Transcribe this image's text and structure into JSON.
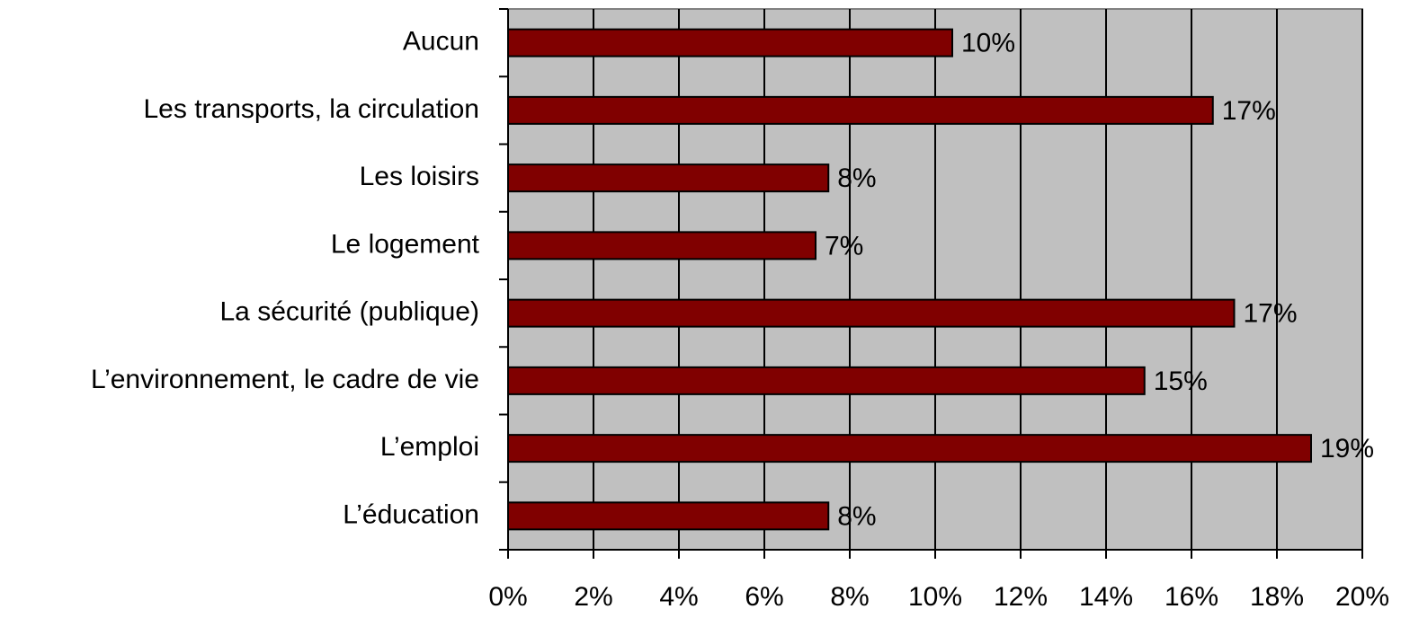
{
  "chart_data": {
    "type": "bar",
    "orientation": "horizontal",
    "categories": [
      "Aucun",
      "Les transports, la circulation",
      "Les loisirs",
      "Le logement",
      "La sécurité (publique)",
      "L’environnement, le cadre de vie",
      "L’emploi",
      "L’éducation"
    ],
    "values": [
      10.4,
      16.5,
      7.5,
      7.2,
      17.0,
      14.9,
      18.8,
      7.5
    ],
    "value_labels": [
      "10%",
      "17%",
      "8%",
      "7%",
      "17%",
      "15%",
      "19%",
      "8%"
    ],
    "color": "#800000",
    "xlim": [
      0,
      20
    ],
    "xticks": [
      {
        "value": 0,
        "label": "0%"
      },
      {
        "value": 2,
        "label": "2%"
      },
      {
        "value": 4,
        "label": "4%"
      },
      {
        "value": 6,
        "label": "6%"
      },
      {
        "value": 8,
        "label": "8%"
      },
      {
        "value": 10,
        "label": "10%"
      },
      {
        "value": 12,
        "label": "12%"
      },
      {
        "value": 14,
        "label": "14%"
      },
      {
        "value": 16,
        "label": "16%"
      },
      {
        "value": 18,
        "label": "18%"
      },
      {
        "value": 20,
        "label": "20%"
      }
    ],
    "grid": true
  }
}
